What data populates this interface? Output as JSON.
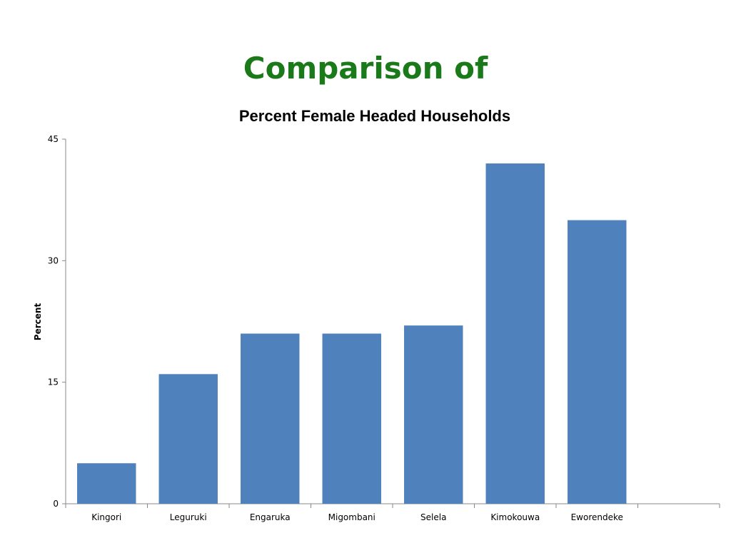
{
  "slide": {
    "title": "Comparison of"
  },
  "chart_data": {
    "type": "bar",
    "title": "Percent Female Headed Households",
    "xlabel": "",
    "ylabel": "Percent",
    "categories": [
      "Kingori",
      "Leguruki",
      "Engaruka",
      "Migombani",
      "Selela",
      "Kimokouwa",
      "Eworendeke",
      ""
    ],
    "values": [
      5,
      16,
      21,
      21,
      22,
      42,
      35,
      null
    ],
    "ylim": [
      0,
      45
    ],
    "yticks": [
      0,
      15,
      30,
      45
    ],
    "grid": false,
    "legend": "none",
    "colors": {
      "bar": "#4f81bd",
      "title": "#1a7a1a",
      "axis": "#888888"
    }
  }
}
